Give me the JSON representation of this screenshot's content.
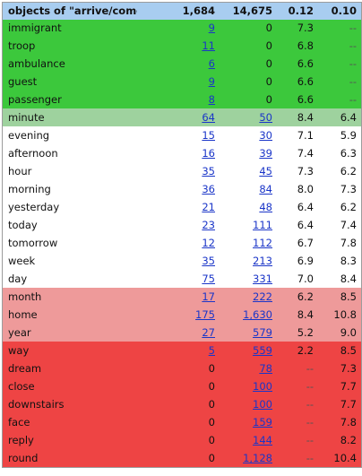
{
  "header": {
    "title": "objects of \"arrive/come\"",
    "col1": "1,684",
    "col2": "14,675",
    "col3": "0.12",
    "col4": "0.10"
  },
  "rows": [
    {
      "word": "immigrant",
      "c1": "9",
      "c2": "0",
      "c3": "7.3",
      "c4": "--",
      "c1_link": true,
      "c2_link": false,
      "group": "green"
    },
    {
      "word": "troop",
      "c1": "11",
      "c2": "0",
      "c3": "6.8",
      "c4": "--",
      "c1_link": true,
      "c2_link": false,
      "group": "green"
    },
    {
      "word": "ambulance",
      "c1": "6",
      "c2": "0",
      "c3": "6.6",
      "c4": "--",
      "c1_link": true,
      "c2_link": false,
      "group": "green"
    },
    {
      "word": "guest",
      "c1": "9",
      "c2": "0",
      "c3": "6.6",
      "c4": "--",
      "c1_link": true,
      "c2_link": false,
      "group": "green"
    },
    {
      "word": "passenger",
      "c1": "8",
      "c2": "0",
      "c3": "6.6",
      "c4": "--",
      "c1_link": true,
      "c2_link": false,
      "group": "green"
    },
    {
      "word": "minute",
      "c1": "64",
      "c2": "50",
      "c3": "8.4",
      "c4": "6.4",
      "c1_link": true,
      "c2_link": true,
      "group": "lgreen"
    },
    {
      "word": "evening",
      "c1": "15",
      "c2": "30",
      "c3": "7.1",
      "c4": "5.9",
      "c1_link": true,
      "c2_link": true,
      "group": "white"
    },
    {
      "word": "afternoon",
      "c1": "16",
      "c2": "39",
      "c3": "7.4",
      "c4": "6.3",
      "c1_link": true,
      "c2_link": true,
      "group": "white"
    },
    {
      "word": "hour",
      "c1": "35",
      "c2": "45",
      "c3": "7.3",
      "c4": "6.2",
      "c1_link": true,
      "c2_link": true,
      "group": "white"
    },
    {
      "word": "morning",
      "c1": "36",
      "c2": "84",
      "c3": "8.0",
      "c4": "7.3",
      "c1_link": true,
      "c2_link": true,
      "group": "white"
    },
    {
      "word": "yesterday",
      "c1": "21",
      "c2": "48",
      "c3": "6.4",
      "c4": "6.2",
      "c1_link": true,
      "c2_link": true,
      "group": "white"
    },
    {
      "word": "today",
      "c1": "23",
      "c2": "111",
      "c3": "6.4",
      "c4": "7.4",
      "c1_link": true,
      "c2_link": true,
      "group": "white"
    },
    {
      "word": "tomorrow",
      "c1": "12",
      "c2": "112",
      "c3": "6.7",
      "c4": "7.8",
      "c1_link": true,
      "c2_link": true,
      "group": "white"
    },
    {
      "word": "week",
      "c1": "35",
      "c2": "213",
      "c3": "6.9",
      "c4": "8.3",
      "c1_link": true,
      "c2_link": true,
      "group": "white"
    },
    {
      "word": "day",
      "c1": "75",
      "c2": "331",
      "c3": "7.0",
      "c4": "8.4",
      "c1_link": true,
      "c2_link": true,
      "group": "white"
    },
    {
      "word": "month",
      "c1": "17",
      "c2": "222",
      "c3": "6.2",
      "c4": "8.5",
      "c1_link": true,
      "c2_link": true,
      "group": "pink"
    },
    {
      "word": "home",
      "c1": "175",
      "c2": "1,630",
      "c3": "8.4",
      "c4": "10.8",
      "c1_link": true,
      "c2_link": true,
      "group": "pink"
    },
    {
      "word": "year",
      "c1": "27",
      "c2": "579",
      "c3": "5.2",
      "c4": "9.0",
      "c1_link": true,
      "c2_link": true,
      "group": "pink"
    },
    {
      "word": "way",
      "c1": "5",
      "c2": "559",
      "c3": "2.2",
      "c4": "8.5",
      "c1_link": true,
      "c2_link": true,
      "group": "red"
    },
    {
      "word": "dream",
      "c1": "0",
      "c2": "78",
      "c3": "--",
      "c4": "7.3",
      "c1_link": false,
      "c2_link": true,
      "group": "red"
    },
    {
      "word": "close",
      "c1": "0",
      "c2": "100",
      "c3": "--",
      "c4": "7.7",
      "c1_link": false,
      "c2_link": true,
      "group": "red"
    },
    {
      "word": "downstairs",
      "c1": "0",
      "c2": "100",
      "c3": "--",
      "c4": "7.7",
      "c1_link": false,
      "c2_link": true,
      "group": "red"
    },
    {
      "word": "face",
      "c1": "0",
      "c2": "159",
      "c3": "--",
      "c4": "7.8",
      "c1_link": false,
      "c2_link": true,
      "group": "red"
    },
    {
      "word": "reply",
      "c1": "0",
      "c2": "144",
      "c3": "--",
      "c4": "8.2",
      "c1_link": false,
      "c2_link": true,
      "group": "red"
    },
    {
      "word": "round",
      "c1": "0",
      "c2": "1,128",
      "c3": "--",
      "c4": "10.4",
      "c1_link": false,
      "c2_link": true,
      "group": "red"
    }
  ],
  "colors": {
    "header_bg": "#a8cdf0",
    "green": "#3cc83c",
    "light_green": "#9ed29e",
    "white": "#ffffff",
    "pink": "#ee9a9a",
    "red": "#ee4444",
    "link": "#1a35c8"
  }
}
